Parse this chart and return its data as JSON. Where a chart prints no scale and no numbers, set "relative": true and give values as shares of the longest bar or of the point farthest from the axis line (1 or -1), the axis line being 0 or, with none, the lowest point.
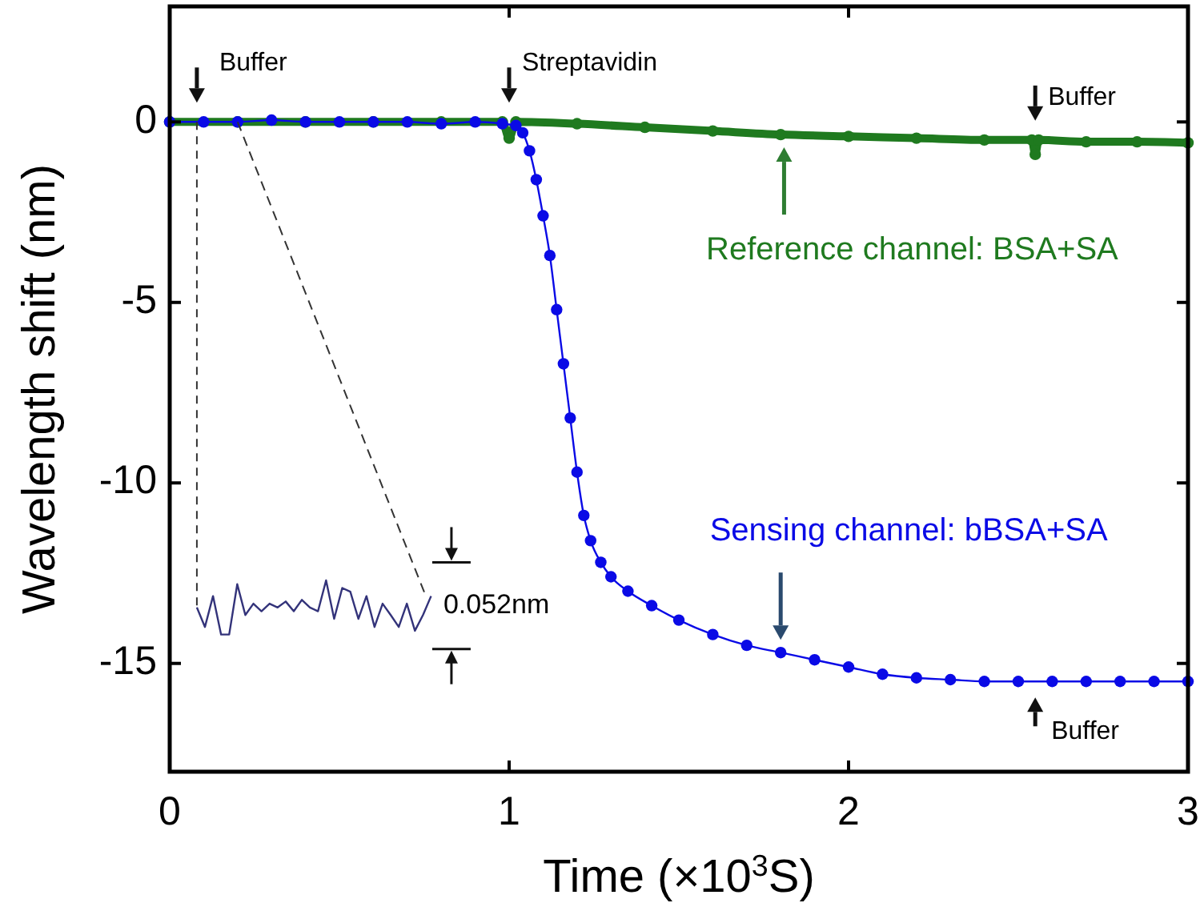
{
  "chart_data": [
    {
      "type": "line",
      "xlabel": "Time (×10$^{3}$S)",
      "ylabel": "Wavelength shift (nm)",
      "xlim": [
        0,
        3
      ],
      "ylim": [
        -18,
        3.2
      ],
      "xticks": [
        0,
        1,
        2,
        3
      ],
      "yticks": [
        0,
        -5,
        -10,
        -15
      ],
      "legend": false,
      "marker": "circle",
      "line_style": "solid",
      "series": [
        {
          "name": "Reference channel: BSA+SA",
          "color": "#1f7a1f",
          "x": [
            0,
            0.2,
            0.4,
            0.6,
            0.8,
            0.98,
            1.0,
            1.02,
            1.2,
            1.4,
            1.6,
            1.8,
            2.0,
            2.2,
            2.4,
            2.54,
            2.55,
            2.56,
            2.7,
            2.85,
            3.0
          ],
          "values": [
            0,
            0,
            0,
            0,
            0,
            0,
            -0.45,
            0,
            -0.05,
            -0.15,
            -0.25,
            -0.35,
            -0.4,
            -0.45,
            -0.5,
            -0.5,
            -0.9,
            -0.5,
            -0.55,
            -0.55,
            -0.58
          ]
        },
        {
          "name": "Sensing channel: bBSA+SA",
          "color": "#0a0ae6",
          "x": [
            0,
            0.1,
            0.2,
            0.3,
            0.4,
            0.5,
            0.6,
            0.7,
            0.8,
            0.9,
            0.98,
            1.02,
            1.04,
            1.06,
            1.08,
            1.1,
            1.12,
            1.14,
            1.16,
            1.18,
            1.2,
            1.22,
            1.24,
            1.27,
            1.3,
            1.35,
            1.42,
            1.5,
            1.6,
            1.7,
            1.8,
            1.9,
            2.0,
            2.1,
            2.2,
            2.3,
            2.4,
            2.5,
            2.6,
            2.7,
            2.8,
            2.9,
            3.0
          ],
          "values": [
            0,
            0,
            0,
            0.05,
            0,
            0,
            0,
            0,
            -0.05,
            0,
            -0.05,
            -0.1,
            -0.3,
            -0.8,
            -1.6,
            -2.6,
            -3.7,
            -5.2,
            -6.7,
            -8.2,
            -9.7,
            -10.9,
            -11.6,
            -12.2,
            -12.6,
            -13.0,
            -13.4,
            -13.8,
            -14.2,
            -14.5,
            -14.7,
            -14.9,
            -15.1,
            -15.3,
            -15.4,
            -15.45,
            -15.5,
            -15.5,
            -15.5,
            -15.5,
            -15.5,
            -15.5,
            -15.5
          ]
        }
      ],
      "annotations": [
        {
          "text": "Buffer",
          "x": 0.08,
          "y": 0
        },
        {
          "text": "Streptavidin",
          "x": 1.0,
          "y": 0
        },
        {
          "text": "Buffer",
          "x": 2.55,
          "y": -0.5
        },
        {
          "text": "Buffer",
          "x": 2.55,
          "y": -15.5
        }
      ]
    },
    {
      "type": "line",
      "relative": true,
      "categories": [
        null,
        null,
        null,
        null,
        null,
        null,
        null,
        null,
        null,
        null,
        null,
        null,
        null,
        null,
        null,
        null,
        null,
        null,
        null,
        null,
        null,
        null,
        null,
        null,
        null,
        null,
        null,
        null,
        null,
        null
      ],
      "values": [
        0.5,
        0.14,
        0.71,
        0,
        0,
        0.93,
        0.36,
        0.57,
        0.43,
        0.57,
        0.5,
        0.61,
        0.43,
        0.64,
        0.5,
        0.43,
        1,
        0.29,
        0.86,
        0.79,
        0.29,
        0.71,
        0.14,
        0.57,
        0.36,
        0.14,
        0.57,
        0.07,
        0.36,
        0.71
      ],
      "color": "#33337a",
      "annotations": [
        "0.052nm"
      ]
    }
  ]
}
